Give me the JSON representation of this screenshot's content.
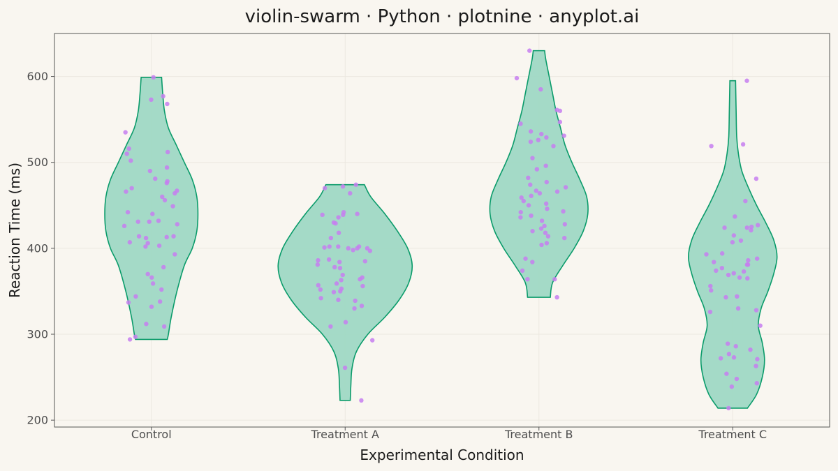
{
  "chart_data": {
    "type": "violin",
    "title": "violin-swarm · Python · plotnine · anyplot.ai",
    "xlabel": "Experimental Condition",
    "ylabel": "Reaction Time (ms)",
    "ylim": [
      192,
      650
    ],
    "yticks": [
      200,
      300,
      400,
      500,
      600
    ],
    "categories": [
      "Control",
      "Treatment A",
      "Treatment B",
      "Treatment C"
    ],
    "colors": {
      "background": "#f9f6f0",
      "violin_fill": "#9fd8c4",
      "violin_stroke": "#0a9b6a",
      "point": "#c77ef0",
      "grid": "#ece8e0",
      "frame": "#555555"
    },
    "grid": true,
    "legend": "none",
    "groups": [
      {
        "name": "Control",
        "min": 294,
        "max": 599,
        "density_profile": [
          [
            294,
            28
          ],
          [
            300,
            30
          ],
          [
            320,
            35
          ],
          [
            350,
            45
          ],
          [
            380,
            58
          ],
          [
            400,
            72
          ],
          [
            420,
            80
          ],
          [
            440,
            82
          ],
          [
            460,
            80
          ],
          [
            480,
            72
          ],
          [
            500,
            58
          ],
          [
            520,
            44
          ],
          [
            540,
            30
          ],
          [
            560,
            23
          ],
          [
            580,
            20
          ],
          [
            599,
            18
          ]
        ],
        "points": [
          294,
          297,
          309,
          312,
          332,
          337,
          338,
          344,
          352,
          359,
          366,
          370,
          378,
          393,
          402,
          403,
          406,
          407,
          412,
          413,
          414,
          414,
          426,
          428,
          431,
          431,
          432,
          440,
          442,
          449,
          456,
          460,
          464,
          466,
          467,
          470,
          476,
          478,
          481,
          490,
          494,
          502,
          510,
          512,
          516,
          535,
          568,
          573,
          577,
          599
        ]
      },
      {
        "name": "Treatment A",
        "min": 223,
        "max": 474,
        "density_profile": [
          [
            223,
            9
          ],
          [
            240,
            10
          ],
          [
            260,
            12
          ],
          [
            280,
            20
          ],
          [
            300,
            40
          ],
          [
            320,
            70
          ],
          [
            340,
            95
          ],
          [
            360,
            112
          ],
          [
            380,
            118
          ],
          [
            400,
            110
          ],
          [
            420,
            92
          ],
          [
            440,
            70
          ],
          [
            460,
            45
          ],
          [
            474,
            34
          ]
        ],
        "points": [
          223,
          261,
          293,
          309,
          314,
          330,
          333,
          339,
          340,
          342,
          349,
          350,
          352,
          353,
          356,
          357,
          359,
          363,
          364,
          366,
          369,
          377,
          378,
          381,
          384,
          385,
          386,
          387,
          397,
          398,
          400,
          400,
          400,
          401,
          402,
          402,
          402,
          412,
          418,
          429,
          430,
          436,
          439,
          439,
          440,
          442,
          464,
          470,
          472,
          474
        ]
      },
      {
        "name": "Treatment B",
        "min": 343,
        "max": 630,
        "density_profile": [
          [
            343,
            20
          ],
          [
            360,
            24
          ],
          [
            380,
            42
          ],
          [
            400,
            62
          ],
          [
            420,
            78
          ],
          [
            440,
            86
          ],
          [
            460,
            84
          ],
          [
            480,
            72
          ],
          [
            500,
            58
          ],
          [
            520,
            46
          ],
          [
            540,
            38
          ],
          [
            560,
            30
          ],
          [
            580,
            24
          ],
          [
            600,
            18
          ],
          [
            620,
            12
          ],
          [
            630,
            10
          ]
        ],
        "points": [
          343,
          364,
          364,
          374,
          384,
          388,
          404,
          406,
          412,
          414,
          418,
          420,
          423,
          426,
          428,
          432,
          436,
          438,
          442,
          443,
          446,
          450,
          452,
          455,
          459,
          461,
          464,
          466,
          467,
          471,
          474,
          477,
          482,
          492,
          496,
          505,
          519,
          524,
          526,
          529,
          531,
          533,
          536,
          545,
          547,
          560,
          561,
          585,
          598,
          630
        ]
      },
      {
        "name": "Treatment C",
        "min": 214,
        "max": 595,
        "density_profile": [
          [
            214,
            26
          ],
          [
            230,
            42
          ],
          [
            250,
            52
          ],
          [
            270,
            56
          ],
          [
            290,
            52
          ],
          [
            310,
            45
          ],
          [
            330,
            50
          ],
          [
            350,
            62
          ],
          [
            370,
            72
          ],
          [
            390,
            78
          ],
          [
            410,
            72
          ],
          [
            430,
            58
          ],
          [
            450,
            42
          ],
          [
            470,
            28
          ],
          [
            490,
            16
          ],
          [
            510,
            10
          ],
          [
            530,
            7
          ],
          [
            560,
            6
          ],
          [
            595,
            5
          ]
        ],
        "points": [
          214,
          239,
          243,
          248,
          254,
          263,
          271,
          272,
          273,
          277,
          282,
          286,
          289,
          310,
          326,
          328,
          330,
          343,
          344,
          351,
          356,
          365,
          366,
          369,
          371,
          373,
          374,
          377,
          381,
          381,
          384,
          386,
          388,
          393,
          394,
          407,
          409,
          415,
          421,
          424,
          424,
          425,
          427,
          437,
          455,
          481,
          519,
          521,
          595
        ]
      }
    ]
  }
}
